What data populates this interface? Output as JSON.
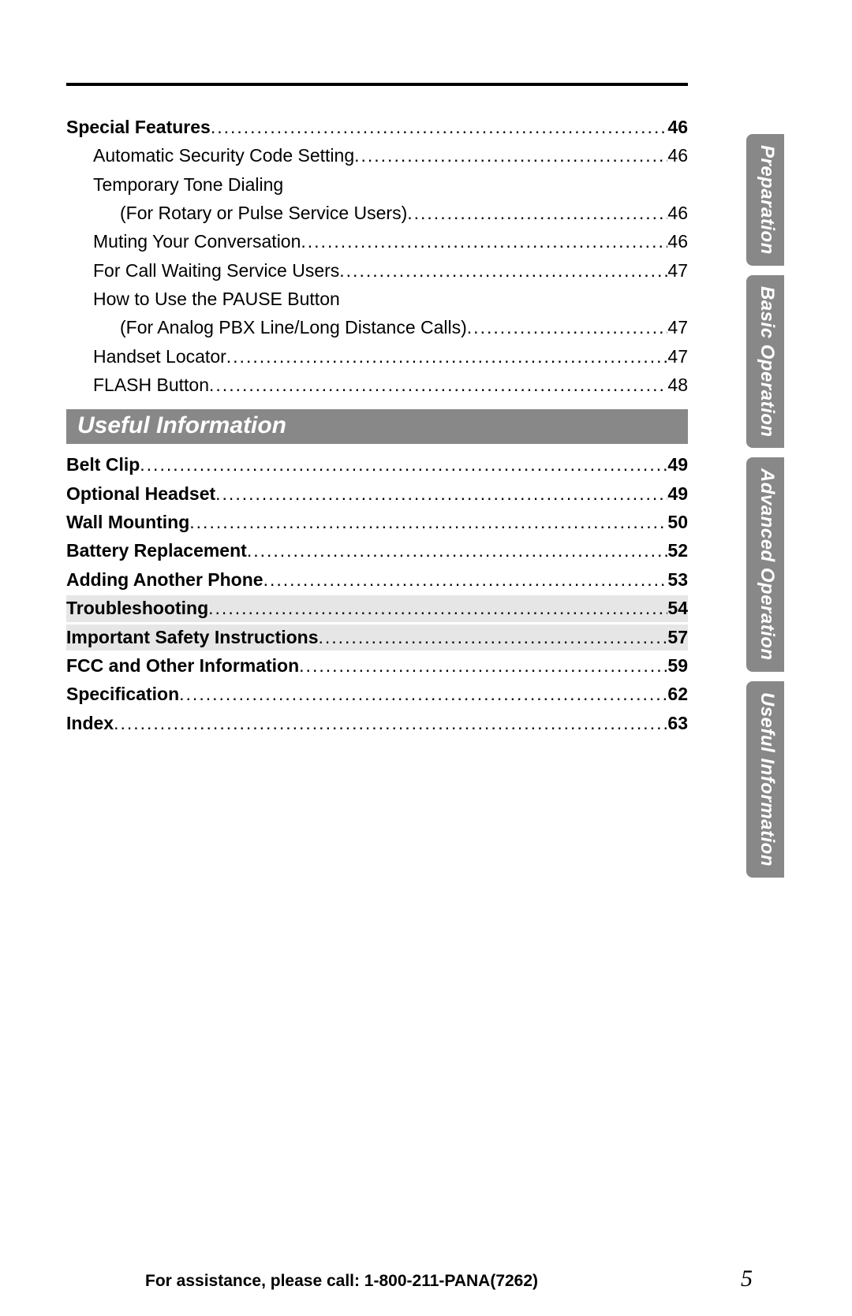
{
  "section1_title": "Special Features",
  "toc": [
    {
      "title": "Special Features",
      "page": "46",
      "bold": true,
      "level": 0
    },
    {
      "title": "Automatic Security Code Setting",
      "page": "46",
      "bold": false,
      "level": 1
    },
    {
      "title_wrap": "Temporary Tone Dialing",
      "title": "(For Rotary or Pulse Service Users)",
      "page": "46",
      "bold": false,
      "level": 1
    },
    {
      "title": "Muting Your Conversation",
      "page": "46",
      "bold": false,
      "level": 1
    },
    {
      "title": "For Call Waiting Service Users",
      "page": "47",
      "bold": false,
      "level": 1
    },
    {
      "title_wrap": "How to Use the PAUSE Button",
      "title": "(For Analog PBX Line/Long Distance Calls)",
      "page": "47",
      "bold": false,
      "level": 1
    },
    {
      "title": "Handset Locator",
      "page": "47",
      "bold": false,
      "level": 1
    },
    {
      "title": "FLASH Button",
      "page": "48",
      "bold": false,
      "level": 1
    }
  ],
  "section_header": "Useful Information",
  "toc2": [
    {
      "title": "Belt Clip",
      "page": "49",
      "bold": true
    },
    {
      "title": "Optional Headset",
      "page": "49",
      "bold": true
    },
    {
      "title": "Wall Mounting",
      "page": "50",
      "bold": true
    },
    {
      "title": "Battery Replacement",
      "page": "52",
      "bold": true
    },
    {
      "title": "Adding Another Phone",
      "page": "53",
      "bold": true
    },
    {
      "title": "Troubleshooting",
      "page": "54",
      "bold": true,
      "highlight": true
    },
    {
      "title": "Important Safety Instructions",
      "page": "57",
      "bold": true,
      "highlight": true
    },
    {
      "title": "FCC and Other Information",
      "page": "59",
      "bold": true
    },
    {
      "title": "Specification",
      "page": "62",
      "bold": true
    },
    {
      "title": "Index",
      "page": "63",
      "bold": true
    }
  ],
  "side_tabs": [
    "Preparation",
    "Basic Operation",
    "Advanced Operation",
    "Useful Information"
  ],
  "footer_text": "For assistance, please call: 1-800-211-PANA(7262)",
  "page_number": "5",
  "dots": "..................................................................................................................................................."
}
